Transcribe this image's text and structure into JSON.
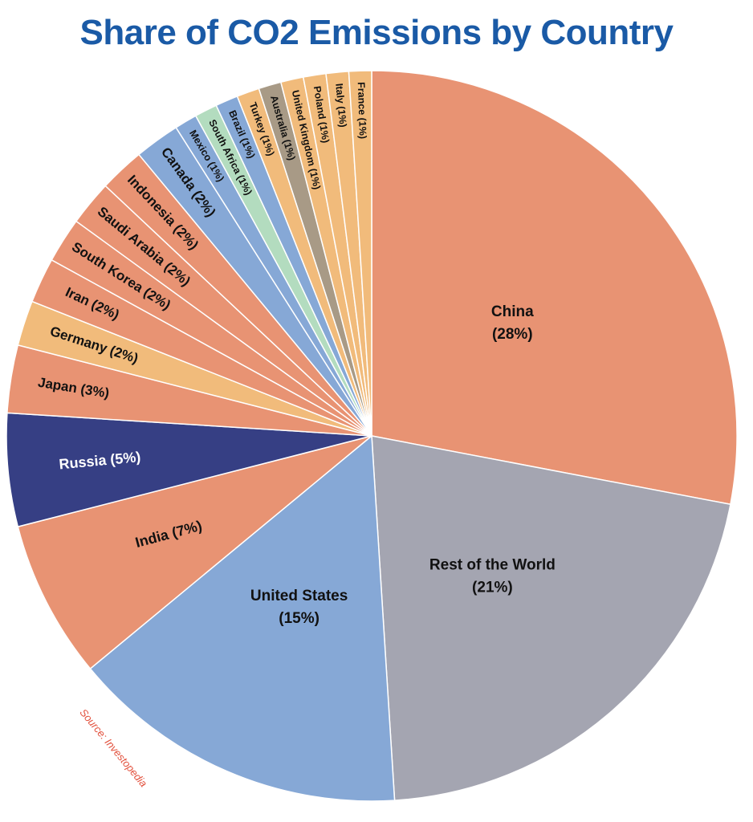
{
  "chart_data": {
    "type": "pie",
    "title": "Share of CO2 Emissions by Country",
    "source": "Source: Investopedia",
    "slices": [
      {
        "label": "China",
        "value_label": "(28%)",
        "value": 28,
        "color": "#e89373"
      },
      {
        "label": "Rest of the World",
        "value_label": "(21%)",
        "value": 21,
        "color": "#a4a5b1"
      },
      {
        "label": "United States",
        "value_label": "(15%)",
        "value": 15,
        "color": "#86a8d6"
      },
      {
        "label": "India",
        "value_label": "(7%)",
        "value": 7,
        "color": "#e89373"
      },
      {
        "label": "Russia",
        "value_label": "(5%)",
        "value": 5,
        "color": "#363f84"
      },
      {
        "label": "Japan",
        "value_label": "(3%)",
        "value": 3,
        "color": "#e89373"
      },
      {
        "label": "Germany",
        "value_label": "(2%)",
        "value": 2,
        "color": "#f1bb7b"
      },
      {
        "label": "Iran",
        "value_label": "(2%)",
        "value": 2,
        "color": "#e89373"
      },
      {
        "label": "South Korea",
        "value_label": "(2%)",
        "value": 2,
        "color": "#e89373"
      },
      {
        "label": "Saudi Arabia",
        "value_label": "(2%)",
        "value": 2,
        "color": "#e89373"
      },
      {
        "label": "Indonesia",
        "value_label": "(2%)",
        "value": 2,
        "color": "#e89373"
      },
      {
        "label": "Canada",
        "value_label": "(2%)",
        "value": 2,
        "color": "#86a8d6"
      },
      {
        "label": "Mexico",
        "value_label": "(1%)",
        "value": 1,
        "color": "#86a8d6"
      },
      {
        "label": "South Africa",
        "value_label": "(1%)",
        "value": 1,
        "color": "#b3dcbf"
      },
      {
        "label": "Brazil",
        "value_label": "(1%)",
        "value": 1,
        "color": "#86a8d6"
      },
      {
        "label": "Turkey",
        "value_label": "(1%)",
        "value": 1,
        "color": "#f1bb7b"
      },
      {
        "label": "Australia",
        "value_label": "(1%)",
        "value": 1,
        "color": "#a89a86"
      },
      {
        "label": "United Kingdom",
        "value_label": "(1%)",
        "value": 1,
        "color": "#f1bb7b"
      },
      {
        "label": "Poland",
        "value_label": "(1%)",
        "value": 1,
        "color": "#f1bb7b"
      },
      {
        "label": "Italy",
        "value_label": "(1%)",
        "value": 1,
        "color": "#f1bb7b"
      },
      {
        "label": "France",
        "value_label": "(1%)",
        "value": 1,
        "color": "#f1bb7b"
      }
    ],
    "legend": "none",
    "start_angle_deg": 0,
    "direction": "clockwise"
  }
}
